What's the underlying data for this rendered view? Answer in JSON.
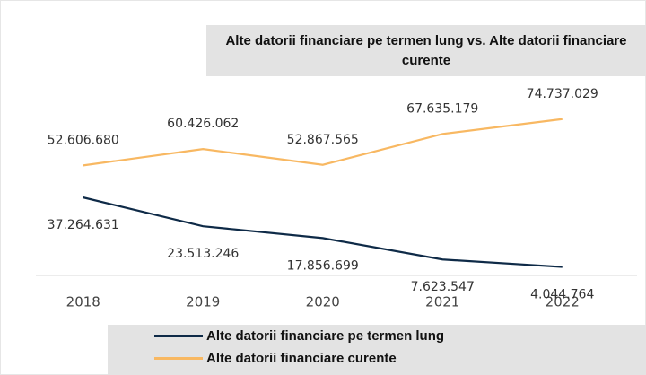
{
  "chart_data": {
    "type": "line",
    "title": "Alte datorii financiare pe termen lung vs. Alte datorii financiare curente",
    "categories": [
      "2018",
      "2019",
      "2020",
      "2021",
      "2022"
    ],
    "series": [
      {
        "name": "Alte datorii financiare pe termen lung",
        "color": "#0e2a47",
        "values": [
          37264631,
          23513246,
          17856699,
          7623547,
          4044764
        ],
        "value_labels": [
          "37.264.631",
          "23.513.246",
          "17.856.699",
          "7.623.547",
          "4.044.764"
        ]
      },
      {
        "name": "Alte datorii financiare curente",
        "color": "#f8b862",
        "values": [
          52606680,
          60426062,
          52867565,
          67635179,
          74737029
        ],
        "value_labels": [
          "52.606.680",
          "60.426.062",
          "52.867.565",
          "67.635.179",
          "74.737.029"
        ]
      }
    ],
    "ylim": [
      0,
      80000000
    ]
  }
}
